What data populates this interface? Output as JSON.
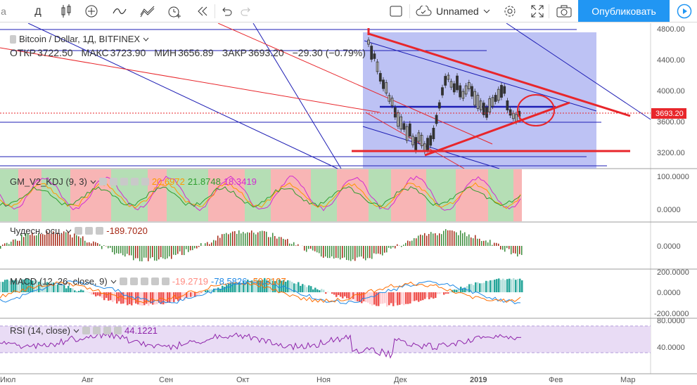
{
  "toolbar": {
    "interval": "Д",
    "layout_name": "Unnamed",
    "publish_label": "Опубликовать"
  },
  "symbol": {
    "title": "Bitcoin / Dollar, 1Д, BITFINEX",
    "open_label": "ОТКР",
    "open": "3722.50",
    "high_label": "МАКС",
    "high": "3723.90",
    "low_label": "МИН",
    "low": "3656.89",
    "close_label": "ЗАКР",
    "close": "3693.20",
    "change": "−29.30 (−0.79%)",
    "last_price_tag": "3693.20"
  },
  "price_axis": [
    "4800.00",
    "4400.00",
    "4000.00",
    "3600.00",
    "3200.00"
  ],
  "indicators": {
    "kdj": {
      "name": "GM_V2_KDJ (9, 3)",
      "v1": "20.6972",
      "v2": "21.8748",
      "v3": "18.3419",
      "axis": [
        "100.0000",
        "0.0000"
      ]
    },
    "ao": {
      "name": "Чудесн. осц.",
      "v1": "-189.7020",
      "axis": [
        "0.0000"
      ]
    },
    "macd": {
      "name": "MACD (12, 26, close, 9)",
      "v1": "-19.2719",
      "v2": "-78.5826",
      "v3": "-59.3107",
      "axis": [
        "200.0000",
        "0.0000",
        "-200.0000"
      ]
    },
    "rsi": {
      "name": "RSI (14, close)",
      "v1": "44.1221",
      "axis": [
        "80.0000",
        "40.0000"
      ]
    }
  },
  "time_axis": [
    "Июл",
    "Авг",
    "Сен",
    "Окт",
    "Ноя",
    "Дек",
    "2019",
    "Фев",
    "Мар"
  ],
  "colors": {
    "accent": "#2196f3",
    "red": "#e8262b",
    "blue": "#1e1eb4",
    "green": "#3c8c3c",
    "rsi_fill": "#e9dcf5"
  }
}
